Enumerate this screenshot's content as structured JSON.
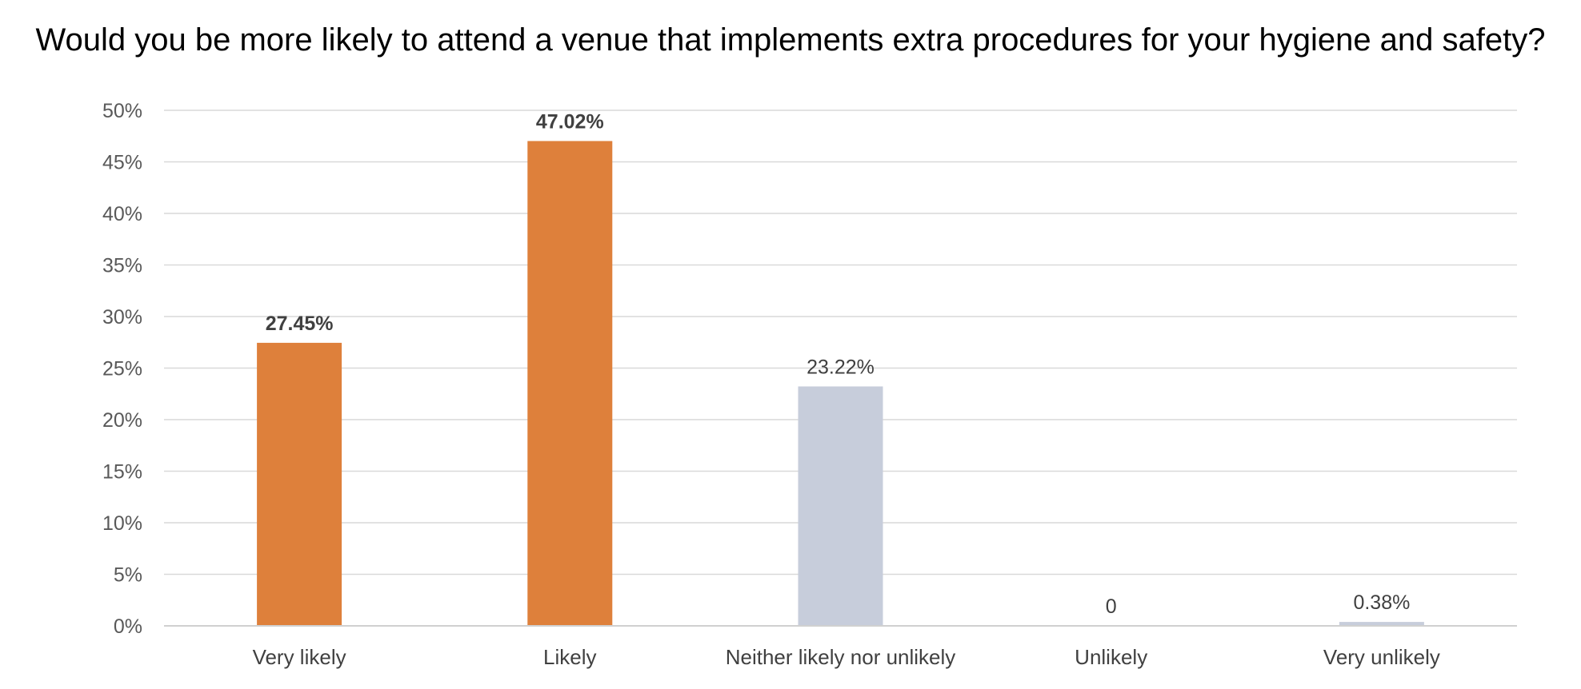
{
  "chart_data": {
    "type": "bar",
    "title": "Would you be more likely to attend a venue that implements extra procedures for your hygiene and safety?",
    "xlabel": "",
    "ylabel": "",
    "ylim": [
      0,
      50
    ],
    "y_ticks": [
      "0%",
      "5%",
      "10%",
      "15%",
      "20%",
      "25%",
      "30%",
      "35%",
      "40%",
      "45%",
      "50%"
    ],
    "y_tick_values": [
      0,
      5,
      10,
      15,
      20,
      25,
      30,
      35,
      40,
      45,
      50
    ],
    "grid": true,
    "legend": "none",
    "categories": [
      "Very likely",
      "Likely",
      "Neither likely nor unlikely",
      "Unlikely",
      "Very unlikely"
    ],
    "values": [
      27.45,
      47.02,
      23.22,
      0,
      0.38
    ],
    "data_labels": [
      "27.45%",
      "47.02%",
      "23.22%",
      "0",
      "0.38%"
    ],
    "data_label_bold": [
      true,
      true,
      false,
      false,
      false
    ],
    "bar_colors": [
      "#DE803B",
      "#DE803B",
      "#C7CDDB",
      "#C7CDDB",
      "#C7CDDB"
    ],
    "gridline_color": "#D9D9D9",
    "axis_color": "#D0D0D0"
  }
}
